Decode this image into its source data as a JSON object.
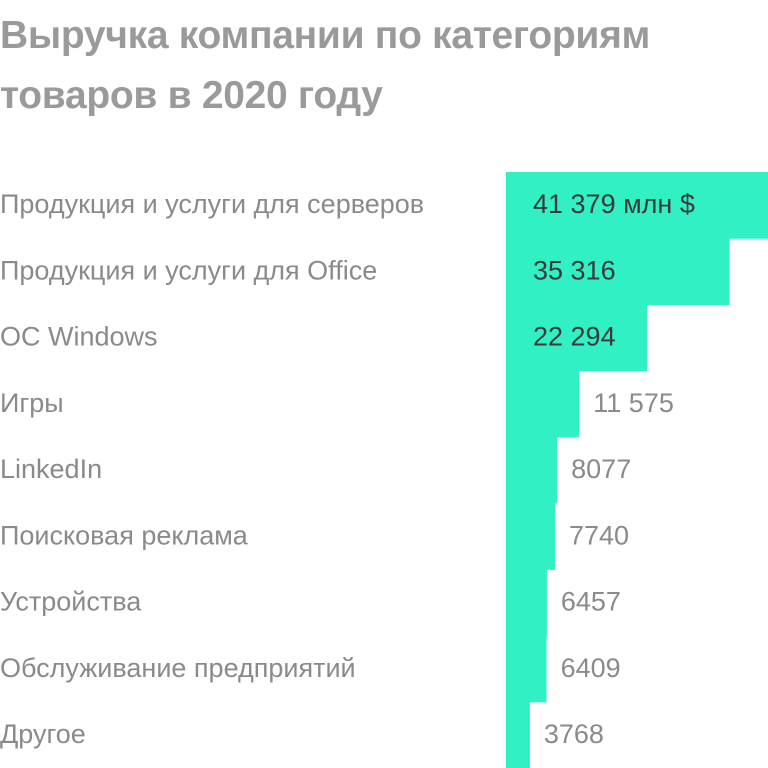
{
  "chart_data": {
    "type": "hbar",
    "title": "Выручка компании по категориям товаров в 2020 году",
    "categories": [
      "Продукция и услуги для серверов",
      "Продукция и услуги для Office",
      "ОС Windows",
      "Игры",
      "LinkedIn",
      "Поисковая реклама",
      "Устройства",
      "Обслуживание предприятий",
      "Другое"
    ],
    "values": [
      41379,
      35316,
      22294,
      11575,
      8077,
      7740,
      6457,
      6409,
      3768
    ],
    "value_labels": [
      "41 379 млн $",
      "35 316",
      "22 294",
      "11 575",
      "8077",
      "7740",
      "6457",
      "6409",
      "3768"
    ],
    "color": "#30f0c4"
  }
}
